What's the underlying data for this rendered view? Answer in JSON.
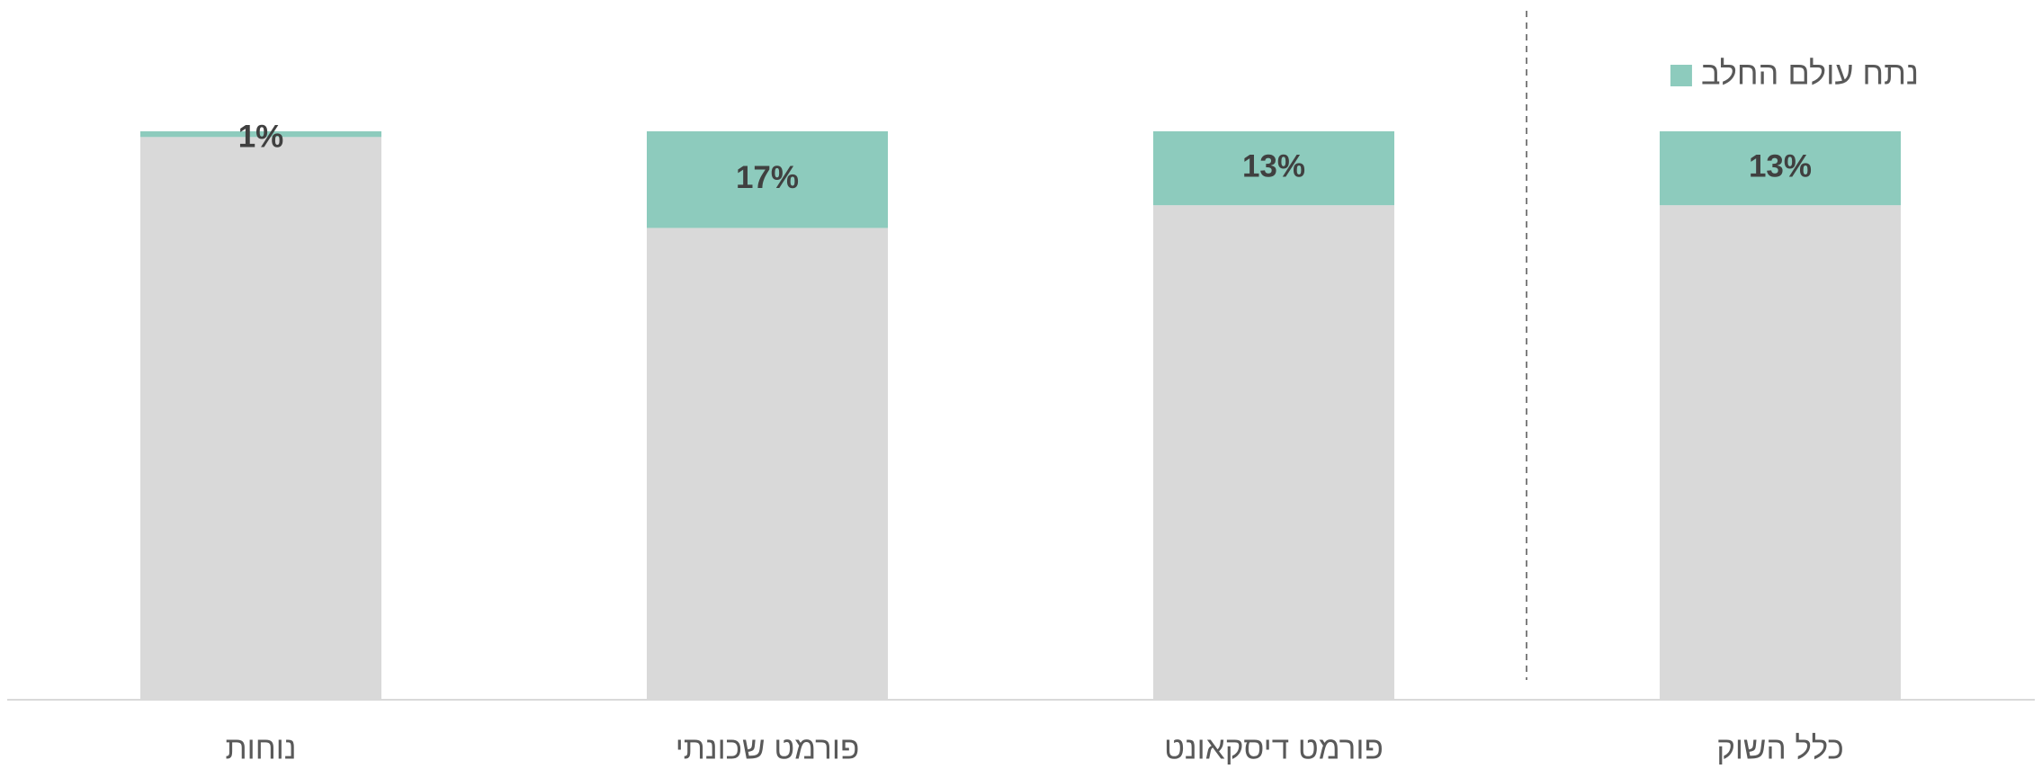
{
  "chart_data": {
    "type": "stacked_bar",
    "categories": [
      "כלל השוק",
      "פורמט דיסקאונט",
      "פורמט שכונתי",
      "נוחות"
    ],
    "series": [
      {
        "color": "#d9d9d9",
        "values": [
          87,
          87,
          83,
          99
        ]
      },
      {
        "name": "נתח עולם החלב",
        "color": "#8dcbbd",
        "values": [
          13,
          13,
          17,
          1
        ],
        "value_labels": [
          "13%",
          "13%",
          "17%",
          "1%"
        ]
      }
    ],
    "ylim": [
      0,
      100
    ],
    "legend": "top-right"
  }
}
